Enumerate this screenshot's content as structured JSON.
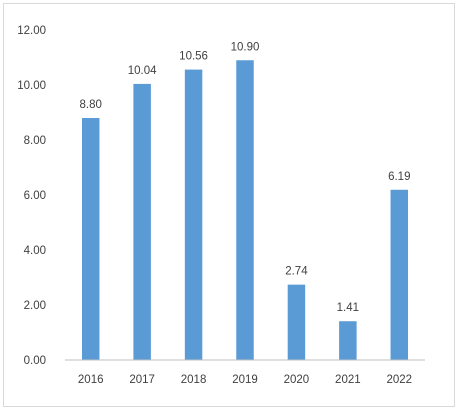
{
  "chart_data": {
    "type": "bar",
    "categories": [
      "2016",
      "2017",
      "2018",
      "2019",
      "2020",
      "2021",
      "2022"
    ],
    "values": [
      8.8,
      10.04,
      10.56,
      10.9,
      2.74,
      1.41,
      6.19
    ],
    "data_labels": [
      "8.80",
      "10.04",
      "10.56",
      "10.90",
      "2.74",
      "1.41",
      "6.19"
    ],
    "y_ticks": [
      "0.00",
      "2.00",
      "4.00",
      "6.00",
      "8.00",
      "10.00",
      "12.00"
    ],
    "ylim": [
      0,
      12
    ],
    "grid": false,
    "legend": "none",
    "title": "",
    "xlabel": "",
    "ylabel": "",
    "colors": {
      "bar": "#5b9bd5",
      "axis": "#bfbfbf",
      "text": "#404040"
    }
  }
}
